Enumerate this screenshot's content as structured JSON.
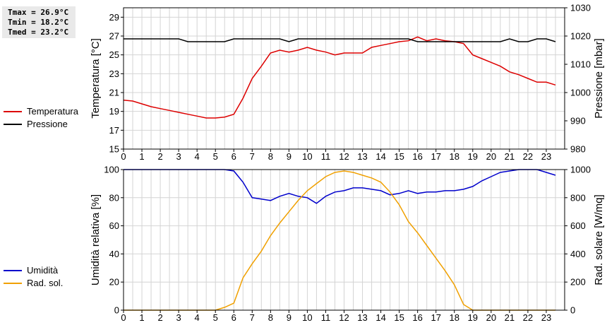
{
  "stats": {
    "tmax": "Tmax = 26.9°C",
    "tmin": "Tmin = 18.2°C",
    "tmed": "Tmed = 23.2°C"
  },
  "chart_data": [
    {
      "type": "line",
      "x_ticks": [
        "0",
        "1",
        "2",
        "3",
        "4",
        "5",
        "6",
        "7",
        "8",
        "9",
        "10",
        "11",
        "12",
        "13",
        "14",
        "15",
        "16",
        "17",
        "18",
        "19",
        "20",
        "21",
        "22",
        "23"
      ],
      "xlim": [
        0,
        24
      ],
      "ylabel_left": "Temperatura [°C]",
      "ylabel_right": "Pressione [mbar]",
      "ylim_left": [
        15,
        30
      ],
      "ylim_right": [
        980,
        1030
      ],
      "yticks_left": [
        15,
        17,
        19,
        21,
        23,
        25,
        27,
        29
      ],
      "yticks_right": [
        980,
        990,
        1000,
        1010,
        1020,
        1030
      ],
      "grid": true,
      "legend_placement": "left",
      "series": [
        {
          "name": "Temperatura",
          "axis": "left",
          "color": "#dd0000",
          "x": [
            0,
            0.5,
            1,
            1.5,
            2,
            2.5,
            3,
            3.5,
            4,
            4.5,
            5,
            5.5,
            6,
            6.5,
            7,
            7.5,
            8,
            8.5,
            9,
            9.5,
            10,
            10.5,
            11,
            11.5,
            12,
            12.5,
            13,
            13.5,
            14,
            14.5,
            15,
            15.5,
            16,
            16.5,
            17,
            17.5,
            18,
            18.5,
            19,
            19.5,
            20,
            20.5,
            21,
            21.5,
            22,
            22.5,
            23,
            23.5
          ],
          "y": [
            20.2,
            20.1,
            19.8,
            19.5,
            19.3,
            19.1,
            18.9,
            18.7,
            18.5,
            18.3,
            18.3,
            18.4,
            18.7,
            20.4,
            22.5,
            23.8,
            25.2,
            25.5,
            25.3,
            25.5,
            25.8,
            25.5,
            25.3,
            25.0,
            25.2,
            25.2,
            25.2,
            25.8,
            26.0,
            26.2,
            26.4,
            26.5,
            26.9,
            26.5,
            26.7,
            26.5,
            26.4,
            26.2,
            25.0,
            24.6,
            24.2,
            23.8,
            23.2,
            22.9,
            22.5,
            22.1,
            22.1,
            21.8
          ]
        },
        {
          "name": "Pressione",
          "axis": "right",
          "color": "#000000",
          "x": [
            0,
            0.5,
            1,
            1.5,
            2,
            2.5,
            3,
            3.5,
            4,
            4.5,
            5,
            5.5,
            6,
            6.5,
            7,
            7.5,
            8,
            8.5,
            9,
            9.5,
            10,
            10.5,
            11,
            11.5,
            12,
            12.5,
            13,
            13.5,
            14,
            14.5,
            15,
            15.5,
            16,
            16.5,
            17,
            17.5,
            18,
            18.5,
            19,
            19.5,
            20,
            20.5,
            21,
            21.5,
            22,
            22.5,
            23,
            23.5
          ],
          "y": [
            1019,
            1019,
            1019,
            1019,
            1019,
            1019,
            1019,
            1018,
            1018,
            1018,
            1018,
            1018,
            1019,
            1019,
            1019,
            1019,
            1019,
            1019,
            1018,
            1019,
            1019,
            1019,
            1019,
            1019,
            1019,
            1019,
            1019,
            1019,
            1019,
            1019,
            1019,
            1019,
            1018,
            1018,
            1018,
            1018,
            1018,
            1018,
            1018,
            1018,
            1018,
            1018,
            1019,
            1018,
            1018,
            1019,
            1019,
            1018
          ]
        }
      ]
    },
    {
      "type": "line",
      "x_ticks": [
        "0",
        "1",
        "2",
        "3",
        "4",
        "5",
        "6",
        "7",
        "8",
        "9",
        "10",
        "11",
        "12",
        "13",
        "14",
        "15",
        "16",
        "17",
        "18",
        "19",
        "20",
        "21",
        "22",
        "23"
      ],
      "xlim": [
        0,
        24
      ],
      "ylabel_left": "Umidità relativa [%]",
      "ylabel_right": "Rad. solare [W/mq]",
      "ylim_left": [
        0,
        100
      ],
      "ylim_right": [
        0,
        1000
      ],
      "yticks_left": [
        0,
        20,
        40,
        60,
        80,
        100
      ],
      "yticks_right": [
        0,
        200,
        400,
        600,
        800,
        1000
      ],
      "grid": true,
      "legend_placement": "left",
      "series": [
        {
          "name": "Umidità",
          "axis": "left",
          "color": "#0000cc",
          "x": [
            0,
            0.5,
            1,
            1.5,
            2,
            2.5,
            3,
            3.5,
            4,
            4.5,
            5,
            5.5,
            6,
            6.5,
            7,
            7.5,
            8,
            8.5,
            9,
            9.5,
            10,
            10.5,
            11,
            11.5,
            12,
            12.5,
            13,
            13.5,
            14,
            14.5,
            15,
            15.5,
            16,
            16.5,
            17,
            17.5,
            18,
            18.5,
            19,
            19.5,
            20,
            20.5,
            21,
            21.5,
            22,
            22.5,
            23,
            23.5
          ],
          "y": [
            100,
            100,
            100,
            100,
            100,
            100,
            100,
            100,
            100,
            100,
            100,
            100,
            99,
            91,
            80,
            79,
            78,
            81,
            83,
            81,
            80,
            76,
            81,
            84,
            85,
            87,
            87,
            86,
            85,
            82,
            83,
            85,
            83,
            84,
            84,
            85,
            85,
            86,
            88,
            92,
            95,
            98,
            99,
            100,
            100,
            100,
            98,
            96
          ]
        },
        {
          "name": "Rad. sol.",
          "axis": "right",
          "color": "#f0a000",
          "x": [
            0,
            0.5,
            1,
            1.5,
            2,
            2.5,
            3,
            3.5,
            4,
            4.5,
            5,
            5.5,
            6,
            6.5,
            7,
            7.5,
            8,
            8.5,
            9,
            9.5,
            10,
            10.5,
            11,
            11.5,
            12,
            12.5,
            13,
            13.5,
            14,
            14.5,
            15,
            15.5,
            16,
            16.5,
            17,
            17.5,
            18,
            18.5,
            19,
            19.5,
            20,
            20.5,
            21,
            21.5,
            22,
            22.5,
            23,
            23.5
          ],
          "y": [
            0,
            0,
            0,
            0,
            0,
            0,
            0,
            0,
            0,
            0,
            0,
            20,
            50,
            230,
            330,
            420,
            530,
            620,
            700,
            780,
            850,
            900,
            950,
            980,
            990,
            980,
            960,
            940,
            910,
            840,
            750,
            630,
            550,
            460,
            370,
            280,
            180,
            40,
            0,
            0,
            0,
            0,
            0,
            0,
            0,
            0,
            0,
            0
          ]
        }
      ]
    }
  ]
}
